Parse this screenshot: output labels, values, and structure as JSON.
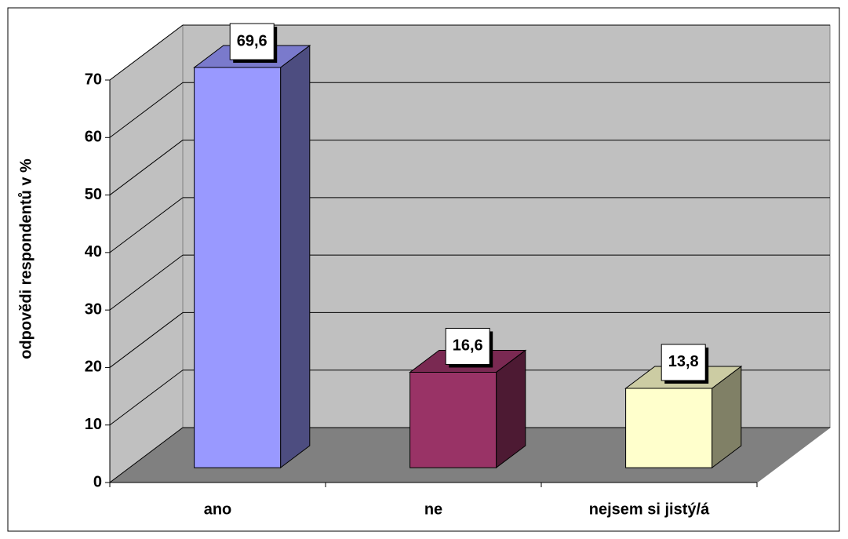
{
  "chart_data": {
    "type": "bar3d",
    "y_label": "odpovědi respondentů v %",
    "categories": [
      "ano",
      "ne",
      "nejsem si jistý/á"
    ],
    "values": [
      69.6,
      16.6,
      13.8
    ],
    "value_labels": [
      "69,6",
      "16,6",
      "13,8"
    ],
    "colors": [
      "#9999ff",
      "#993366",
      "#ffffcc"
    ],
    "ylim": [
      0,
      70
    ],
    "yticks": [
      0,
      10,
      20,
      30,
      40,
      50,
      60,
      70
    ],
    "grid": true
  }
}
